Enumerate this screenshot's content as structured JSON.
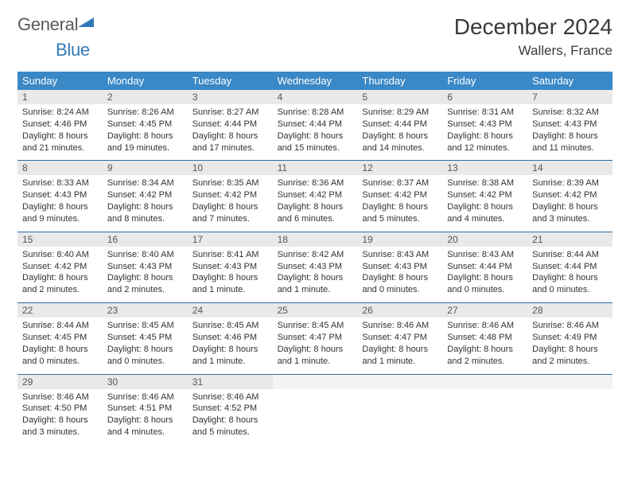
{
  "logo": {
    "text_a": "General",
    "text_b": "Blue",
    "color_a": "#595959",
    "color_b": "#2f79b8",
    "triangle_color": "#2f79b8"
  },
  "title": "December 2024",
  "location": "Wallers, France",
  "header_bg": "#3a88c6",
  "daynum_bg": "#e9e9e9",
  "rule_color": "#2f6ea3",
  "day_names": [
    "Sunday",
    "Monday",
    "Tuesday",
    "Wednesday",
    "Thursday",
    "Friday",
    "Saturday"
  ],
  "weeks": [
    [
      {
        "n": "1",
        "sunrise": "Sunrise: 8:24 AM",
        "sunset": "Sunset: 4:46 PM",
        "daylight": "Daylight: 8 hours and 21 minutes."
      },
      {
        "n": "2",
        "sunrise": "Sunrise: 8:26 AM",
        "sunset": "Sunset: 4:45 PM",
        "daylight": "Daylight: 8 hours and 19 minutes."
      },
      {
        "n": "3",
        "sunrise": "Sunrise: 8:27 AM",
        "sunset": "Sunset: 4:44 PM",
        "daylight": "Daylight: 8 hours and 17 minutes."
      },
      {
        "n": "4",
        "sunrise": "Sunrise: 8:28 AM",
        "sunset": "Sunset: 4:44 PM",
        "daylight": "Daylight: 8 hours and 15 minutes."
      },
      {
        "n": "5",
        "sunrise": "Sunrise: 8:29 AM",
        "sunset": "Sunset: 4:44 PM",
        "daylight": "Daylight: 8 hours and 14 minutes."
      },
      {
        "n": "6",
        "sunrise": "Sunrise: 8:31 AM",
        "sunset": "Sunset: 4:43 PM",
        "daylight": "Daylight: 8 hours and 12 minutes."
      },
      {
        "n": "7",
        "sunrise": "Sunrise: 8:32 AM",
        "sunset": "Sunset: 4:43 PM",
        "daylight": "Daylight: 8 hours and 11 minutes."
      }
    ],
    [
      {
        "n": "8",
        "sunrise": "Sunrise: 8:33 AM",
        "sunset": "Sunset: 4:43 PM",
        "daylight": "Daylight: 8 hours and 9 minutes."
      },
      {
        "n": "9",
        "sunrise": "Sunrise: 8:34 AM",
        "sunset": "Sunset: 4:42 PM",
        "daylight": "Daylight: 8 hours and 8 minutes."
      },
      {
        "n": "10",
        "sunrise": "Sunrise: 8:35 AM",
        "sunset": "Sunset: 4:42 PM",
        "daylight": "Daylight: 8 hours and 7 minutes."
      },
      {
        "n": "11",
        "sunrise": "Sunrise: 8:36 AM",
        "sunset": "Sunset: 4:42 PM",
        "daylight": "Daylight: 8 hours and 6 minutes."
      },
      {
        "n": "12",
        "sunrise": "Sunrise: 8:37 AM",
        "sunset": "Sunset: 4:42 PM",
        "daylight": "Daylight: 8 hours and 5 minutes."
      },
      {
        "n": "13",
        "sunrise": "Sunrise: 8:38 AM",
        "sunset": "Sunset: 4:42 PM",
        "daylight": "Daylight: 8 hours and 4 minutes."
      },
      {
        "n": "14",
        "sunrise": "Sunrise: 8:39 AM",
        "sunset": "Sunset: 4:42 PM",
        "daylight": "Daylight: 8 hours and 3 minutes."
      }
    ],
    [
      {
        "n": "15",
        "sunrise": "Sunrise: 8:40 AM",
        "sunset": "Sunset: 4:42 PM",
        "daylight": "Daylight: 8 hours and 2 minutes."
      },
      {
        "n": "16",
        "sunrise": "Sunrise: 8:40 AM",
        "sunset": "Sunset: 4:43 PM",
        "daylight": "Daylight: 8 hours and 2 minutes."
      },
      {
        "n": "17",
        "sunrise": "Sunrise: 8:41 AM",
        "sunset": "Sunset: 4:43 PM",
        "daylight": "Daylight: 8 hours and 1 minute."
      },
      {
        "n": "18",
        "sunrise": "Sunrise: 8:42 AM",
        "sunset": "Sunset: 4:43 PM",
        "daylight": "Daylight: 8 hours and 1 minute."
      },
      {
        "n": "19",
        "sunrise": "Sunrise: 8:43 AM",
        "sunset": "Sunset: 4:43 PM",
        "daylight": "Daylight: 8 hours and 0 minutes."
      },
      {
        "n": "20",
        "sunrise": "Sunrise: 8:43 AM",
        "sunset": "Sunset: 4:44 PM",
        "daylight": "Daylight: 8 hours and 0 minutes."
      },
      {
        "n": "21",
        "sunrise": "Sunrise: 8:44 AM",
        "sunset": "Sunset: 4:44 PM",
        "daylight": "Daylight: 8 hours and 0 minutes."
      }
    ],
    [
      {
        "n": "22",
        "sunrise": "Sunrise: 8:44 AM",
        "sunset": "Sunset: 4:45 PM",
        "daylight": "Daylight: 8 hours and 0 minutes."
      },
      {
        "n": "23",
        "sunrise": "Sunrise: 8:45 AM",
        "sunset": "Sunset: 4:45 PM",
        "daylight": "Daylight: 8 hours and 0 minutes."
      },
      {
        "n": "24",
        "sunrise": "Sunrise: 8:45 AM",
        "sunset": "Sunset: 4:46 PM",
        "daylight": "Daylight: 8 hours and 1 minute."
      },
      {
        "n": "25",
        "sunrise": "Sunrise: 8:45 AM",
        "sunset": "Sunset: 4:47 PM",
        "daylight": "Daylight: 8 hours and 1 minute."
      },
      {
        "n": "26",
        "sunrise": "Sunrise: 8:46 AM",
        "sunset": "Sunset: 4:47 PM",
        "daylight": "Daylight: 8 hours and 1 minute."
      },
      {
        "n": "27",
        "sunrise": "Sunrise: 8:46 AM",
        "sunset": "Sunset: 4:48 PM",
        "daylight": "Daylight: 8 hours and 2 minutes."
      },
      {
        "n": "28",
        "sunrise": "Sunrise: 8:46 AM",
        "sunset": "Sunset: 4:49 PM",
        "daylight": "Daylight: 8 hours and 2 minutes."
      }
    ],
    [
      {
        "n": "29",
        "sunrise": "Sunrise: 8:46 AM",
        "sunset": "Sunset: 4:50 PM",
        "daylight": "Daylight: 8 hours and 3 minutes."
      },
      {
        "n": "30",
        "sunrise": "Sunrise: 8:46 AM",
        "sunset": "Sunset: 4:51 PM",
        "daylight": "Daylight: 8 hours and 4 minutes."
      },
      {
        "n": "31",
        "sunrise": "Sunrise: 8:46 AM",
        "sunset": "Sunset: 4:52 PM",
        "daylight": "Daylight: 8 hours and 5 minutes."
      },
      null,
      null,
      null,
      null
    ]
  ]
}
